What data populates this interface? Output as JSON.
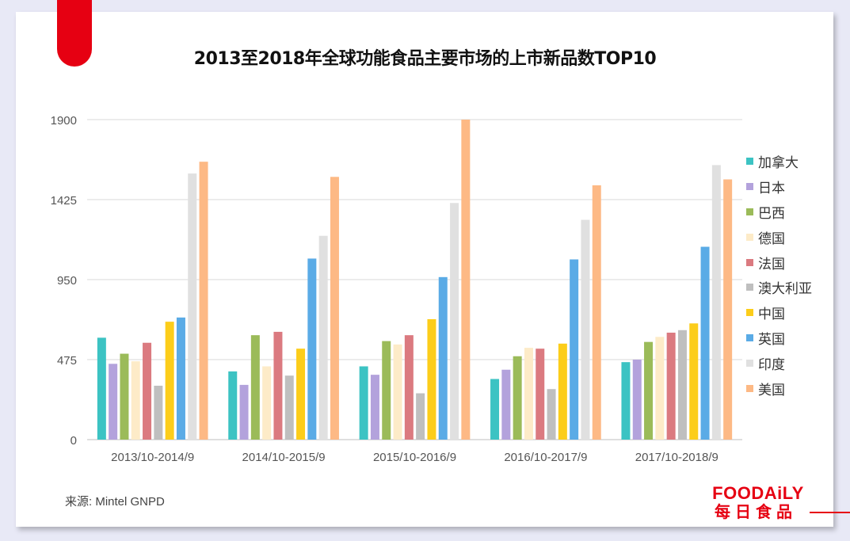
{
  "title": "2013至2018年全球功能食品主要市场的上市新品数TOP10",
  "source": "来源: Mintel GNPD",
  "logo": {
    "top": "FOODAiLY",
    "bottom": "每日食品"
  },
  "colors": {
    "accent": "#e60012",
    "grid": "#d9d9d9",
    "axis_text": "#555555"
  },
  "chart_data": {
    "type": "bar",
    "title": "2013至2018年全球功能食品主要市场的上市新品数TOP10",
    "xlabel": "",
    "ylabel": "",
    "ylim": [
      0,
      1900
    ],
    "yticks": [
      0,
      475,
      950,
      1425,
      1900
    ],
    "grid": true,
    "legend_position": "right",
    "categories": [
      "2013/10-2014/9",
      "2014/10-2015/9",
      "2015/10-2016/9",
      "2016/10-2017/9",
      "2017/10-2018/9"
    ],
    "series": [
      {
        "name": "加拿大",
        "color": "#3cc3c3",
        "values": [
          605,
          405,
          435,
          360,
          460
        ]
      },
      {
        "name": "日本",
        "color": "#b3a2dc",
        "values": [
          450,
          325,
          385,
          415,
          475
        ]
      },
      {
        "name": "巴西",
        "color": "#9bbb59",
        "values": [
          510,
          620,
          585,
          495,
          580
        ]
      },
      {
        "name": "德国",
        "color": "#fdebc8",
        "values": [
          465,
          435,
          565,
          545,
          610
        ]
      },
      {
        "name": "法国",
        "color": "#db7a80",
        "values": [
          575,
          640,
          620,
          540,
          635
        ]
      },
      {
        "name": "澳大利亚",
        "color": "#bfbfbf",
        "values": [
          320,
          380,
          275,
          300,
          650
        ]
      },
      {
        "name": "中国",
        "color": "#fccd1a",
        "values": [
          700,
          540,
          715,
          570,
          690
        ]
      },
      {
        "name": "英国",
        "color": "#5aabe6",
        "values": [
          725,
          1075,
          965,
          1070,
          1145
        ]
      },
      {
        "name": "印度",
        "color": "#e0e0e0",
        "values": [
          1580,
          1210,
          1405,
          1305,
          1630
        ]
      },
      {
        "name": "美国",
        "color": "#fdb985",
        "values": [
          1650,
          1560,
          1900,
          1510,
          1545
        ]
      }
    ]
  }
}
